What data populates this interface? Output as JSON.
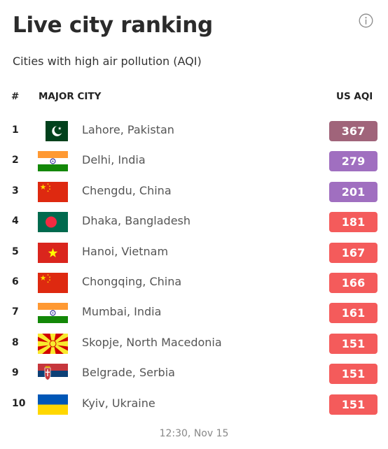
{
  "header": {
    "title": "Live city ranking",
    "subtitle": "Cities with high air pollution (AQI)",
    "info_icon": "info-icon"
  },
  "table": {
    "col_rank": "#",
    "col_city": "MAJOR CITY",
    "col_aqi": "US AQI",
    "rows": [
      {
        "rank": "1",
        "city": "Lahore, Pakistan",
        "aqi": "367",
        "flag": "pakistan",
        "color": "#a0647a"
      },
      {
        "rank": "2",
        "city": "Delhi, India",
        "aqi": "279",
        "flag": "india",
        "color": "#a06fc0"
      },
      {
        "rank": "3",
        "city": "Chengdu, China",
        "aqi": "201",
        "flag": "china",
        "color": "#a06fc0"
      },
      {
        "rank": "4",
        "city": "Dhaka, Bangladesh",
        "aqi": "181",
        "flag": "bangladesh",
        "color": "#f45b5b"
      },
      {
        "rank": "5",
        "city": "Hanoi, Vietnam",
        "aqi": "167",
        "flag": "vietnam",
        "color": "#f45b5b"
      },
      {
        "rank": "6",
        "city": "Chongqing, China",
        "aqi": "166",
        "flag": "china",
        "color": "#f45b5b"
      },
      {
        "rank": "7",
        "city": "Mumbai, India",
        "aqi": "161",
        "flag": "india",
        "color": "#f45b5b"
      },
      {
        "rank": "8",
        "city": "Skopje, North Macedonia",
        "aqi": "151",
        "flag": "north-macedonia",
        "color": "#f45b5b"
      },
      {
        "rank": "9",
        "city": "Belgrade, Serbia",
        "aqi": "151",
        "flag": "serbia",
        "color": "#f45b5b"
      },
      {
        "rank": "10",
        "city": "Kyiv, Ukraine",
        "aqi": "151",
        "flag": "ukraine",
        "color": "#f45b5b"
      }
    ]
  },
  "footer": {
    "timestamp": "12:30, Nov 15"
  }
}
